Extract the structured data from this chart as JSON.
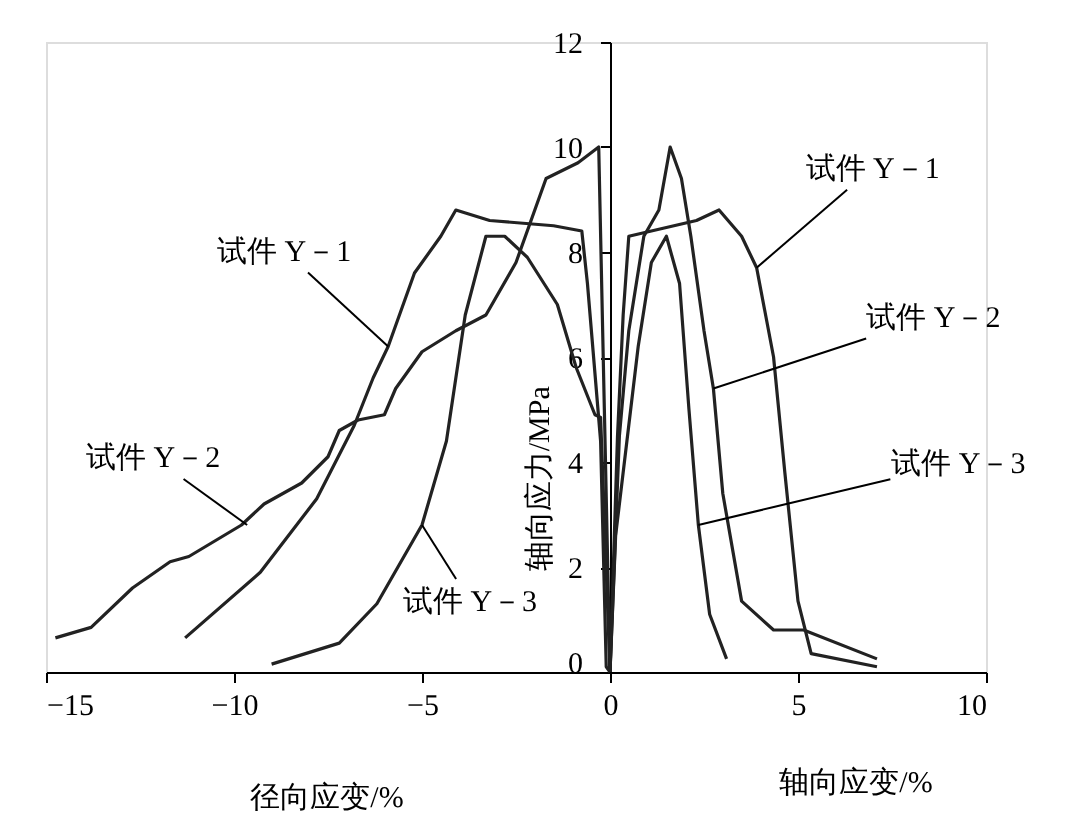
{
  "chart_data": {
    "type": "line",
    "xlabel": "径向应变/%",
    "ylabel": "轴向应力/MPa",
    "xlim": [
      -15,
      10
    ],
    "ylim": [
      0,
      12
    ],
    "xticks": [
      -15,
      -10,
      -5,
      0,
      5,
      10
    ],
    "yticks": [
      0,
      2,
      4,
      6,
      8,
      10,
      12
    ],
    "grid": false,
    "legend": false,
    "marker": "none",
    "line_style": "solid",
    "series": [
      {
        "color": "#222222",
        "x": [
          -11.3,
          -9.3,
          -7.8,
          -6.8,
          -6.3,
          -5.9,
          -5.2,
          -4.5,
          -4.1,
          -3.2,
          -1.5,
          -0.75,
          -0.6,
          -0.25,
          -0.1,
          0
        ],
        "values": [
          0.65,
          1.9,
          3.3,
          4.7,
          5.6,
          6.2,
          7.6,
          8.3,
          8.8,
          8.6,
          8.5,
          8.4,
          7.4,
          4.4,
          0.1,
          0
        ]
      },
      {
        "color": "#222222",
        "x": [
          -14.75,
          -13.8,
          -12.7,
          -11.7,
          -11.2,
          -9.8,
          -9.2,
          -8.2,
          -7.5,
          -7.2,
          -6.7,
          -6.0,
          -5.7,
          -5.0,
          -4.1,
          -3.3,
          -2.5,
          -1.7,
          -0.85,
          -0.3,
          -0.15,
          0
        ],
        "values": [
          0.65,
          0.85,
          1.6,
          2.1,
          2.2,
          2.8,
          3.2,
          3.6,
          4.1,
          4.6,
          4.8,
          4.9,
          5.4,
          6.1,
          6.5,
          6.8,
          7.8,
          9.4,
          9.7,
          10.0,
          5.0,
          0
        ]
      },
      {
        "color": "#222222",
        "x": [
          -9.0,
          -7.2,
          -6.2,
          -5.0,
          -4.35,
          -3.85,
          -3.3,
          -2.8,
          -2.2,
          -1.4,
          -0.9,
          -0.4,
          -0.25,
          0
        ],
        "values": [
          0.15,
          0.55,
          1.3,
          2.8,
          4.4,
          6.8,
          8.3,
          8.3,
          7.9,
          7.0,
          5.8,
          4.9,
          4.85,
          0
        ]
      },
      {
        "color": "#222222",
        "x": [
          0,
          0.2,
          0.35,
          0.5,
          1.1,
          2.3,
          2.9,
          3.5,
          3.9,
          4.35,
          4.65,
          5.0,
          5.35,
          7.1
        ],
        "values": [
          0,
          4.5,
          6.8,
          8.3,
          8.4,
          8.6,
          8.8,
          8.3,
          7.7,
          6.0,
          3.8,
          1.35,
          0.35,
          0.1
        ]
      },
      {
        "color": "#222222",
        "x": [
          0,
          0.25,
          0.5,
          0.9,
          1.3,
          1.6,
          1.9,
          2.15,
          2.5,
          2.75,
          3.0,
          3.5,
          4.35,
          5.15,
          7.1
        ],
        "values": [
          0,
          4.5,
          6.5,
          8.3,
          8.8,
          10.0,
          9.4,
          8.3,
          6.5,
          5.4,
          3.4,
          1.35,
          0.8,
          0.8,
          0.25
        ]
      },
      {
        "color": "#222222",
        "x": [
          0,
          0.15,
          0.75,
          1.1,
          1.5,
          1.85,
          2.1,
          2.35,
          2.65,
          3.1
        ],
        "values": [
          0,
          2.6,
          6.2,
          7.8,
          8.3,
          7.4,
          5.0,
          2.8,
          1.1,
          0.25
        ]
      }
    ],
    "annotations": [
      {
        "text": "试件 Y－1",
        "x": -5.9,
        "y": 6.2
      },
      {
        "text": "试件 Y－2",
        "x": -9.65,
        "y": 2.8
      },
      {
        "text": "试件 Y－3",
        "x": -5.0,
        "y": 2.8
      },
      {
        "text": "试件 Y－1",
        "x": 3.9,
        "y": 7.7
      },
      {
        "text": "试件 Y－2",
        "x": 2.75,
        "y": 5.4
      },
      {
        "text": "试件 Y－3",
        "x": 2.35,
        "y": 2.8
      },
      "轴向应变/%"
    ]
  }
}
